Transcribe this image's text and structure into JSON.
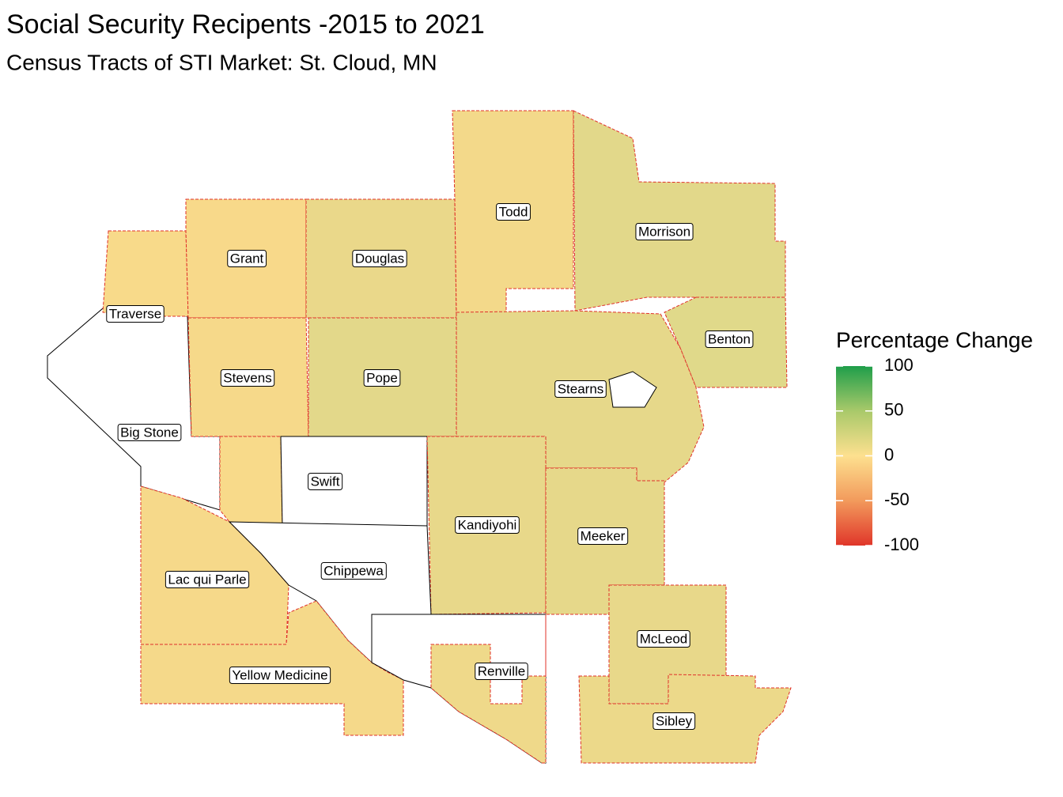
{
  "title": "Social Security Recipents -2015 to 2021",
  "subtitle": "Census Tracts of STI Market: St. Cloud, MN",
  "counties": [
    "Todd",
    "Morrison",
    "Grant",
    "Douglas",
    "Traverse",
    "Benton",
    "Stevens",
    "Pope",
    "Stearns",
    "Big Stone",
    "Swift",
    "Kandiyohi",
    "Meeker",
    "Chippewa",
    "Lac qui Parle",
    "McLeod",
    "Renville",
    "Yellow Medicine",
    "Sibley"
  ],
  "legend": {
    "title": "Percentage Change",
    "range": [
      -100,
      100
    ],
    "ticks": [
      100,
      50,
      0,
      -50,
      -100
    ]
  }
}
